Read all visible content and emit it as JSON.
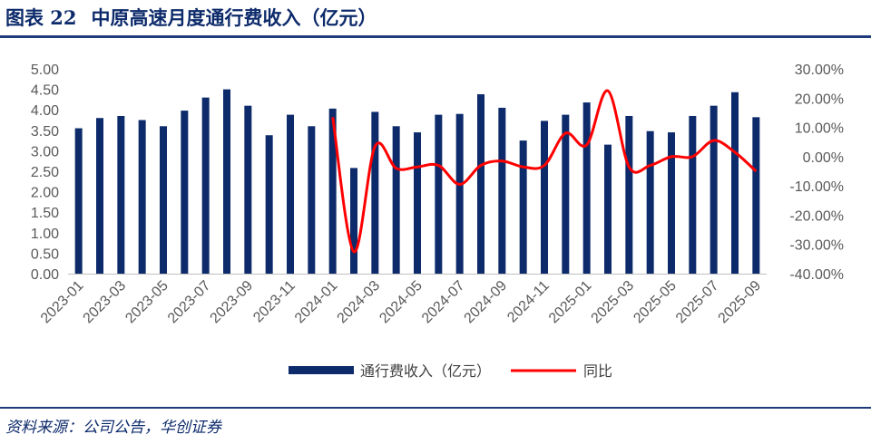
{
  "header": {
    "figure_label": "图表 22",
    "title": "中原高速月度通行费收入（亿元）"
  },
  "footer": {
    "source": "资料来源：公司公告，华创证券"
  },
  "colors": {
    "bar": "#0d2b6b",
    "line": "#ff0000",
    "title": "#0d2b6b",
    "rule": "#1f3a7a"
  },
  "chart_data": {
    "type": "bar",
    "categories": [
      "2023-01",
      "2023-02",
      "2023-03",
      "2023-04",
      "2023-05",
      "2023-06",
      "2023-07",
      "2023-08",
      "2023-09",
      "2023-10",
      "2023-11",
      "2023-12",
      "2024-01",
      "2024-02",
      "2024-03",
      "2024-04",
      "2024-05",
      "2024-06",
      "2024-07",
      "2024-08",
      "2024-09",
      "2024-10",
      "2024-11",
      "2024-12",
      "2025-01",
      "2025-02",
      "2025-03",
      "2025-04",
      "2025-05",
      "2025-06",
      "2025-07",
      "2025-08",
      "2025-09"
    ],
    "x_tick_labels": [
      "2023-01",
      "2023-03",
      "2023-05",
      "2023-07",
      "2023-09",
      "2023-11",
      "2024-01",
      "2024-03",
      "2024-05",
      "2024-07",
      "2024-09",
      "2024-11",
      "2025-01",
      "2025-03",
      "2025-05",
      "2025-07",
      "2025-09"
    ],
    "series": [
      {
        "name": "通行费收入（亿元）",
        "type": "bar",
        "axis": "left",
        "values": [
          3.55,
          3.8,
          3.85,
          3.75,
          3.6,
          3.98,
          4.3,
          4.5,
          4.1,
          3.38,
          3.88,
          3.6,
          4.03,
          2.58,
          3.95,
          3.6,
          3.45,
          3.88,
          3.9,
          4.38,
          4.05,
          3.25,
          3.73,
          3.88,
          4.18,
          3.15,
          3.85,
          3.48,
          3.45,
          3.85,
          4.1,
          4.43,
          3.82
        ]
      },
      {
        "name": "同比",
        "type": "line",
        "axis": "right",
        "unit": "%",
        "values": [
          null,
          null,
          null,
          null,
          null,
          null,
          null,
          null,
          null,
          null,
          null,
          null,
          13.5,
          -32.5,
          3.5,
          -4.0,
          -3.5,
          -3.0,
          -9.5,
          -3.0,
          -1.5,
          -3.5,
          -3.0,
          8.0,
          4.0,
          22.5,
          -3.5,
          -3.0,
          0.0,
          0.0,
          5.5,
          1.5,
          -5.0
        ]
      }
    ],
    "y_left": {
      "ticks": [
        "0.00",
        "0.50",
        "1.00",
        "1.50",
        "2.00",
        "2.50",
        "3.00",
        "3.50",
        "4.00",
        "4.50",
        "5.00"
      ],
      "range": [
        0,
        5
      ]
    },
    "y_right": {
      "ticks": [
        "-40.00%",
        "-30.00%",
        "-20.00%",
        "-10.00%",
        "0.00%",
        "10.00%",
        "20.00%",
        "30.00%"
      ],
      "range": [
        -40,
        30
      ]
    },
    "legend_position": "bottom",
    "grid": false
  }
}
